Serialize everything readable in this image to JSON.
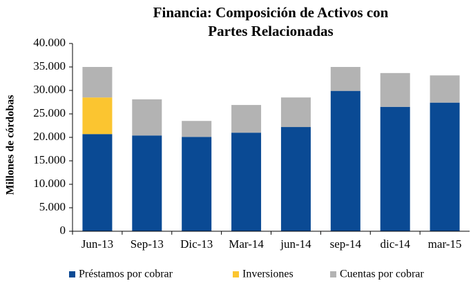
{
  "chart_data": {
    "type": "stacked_bar",
    "title": "Financia: Composición de Activos con Partes Relacionadas",
    "y_label": "Millones de córdobas",
    "categories": [
      "Jun-13",
      "Sep-13",
      "Dic-13",
      "Mar-14",
      "jun-14",
      "sep-14",
      "dic-14",
      "mar-15"
    ],
    "series": [
      {
        "name": "Préstamos por cobrar",
        "color": "#0a4a94",
        "values": [
          20700,
          20400,
          20100,
          21000,
          22200,
          29900,
          26500,
          27400
        ]
      },
      {
        "name": "Inversiones",
        "color": "#fbc530",
        "values": [
          7800,
          0,
          0,
          0,
          0,
          0,
          0,
          0
        ]
      },
      {
        "name": "Cuentas por cobrar",
        "color": "#b3b3b3",
        "values": [
          6500,
          7700,
          3400,
          5900,
          6300,
          5100,
          7200,
          5800
        ]
      }
    ],
    "ylim": [
      0,
      40000
    ],
    "yticks": [
      0,
      {
        "value": 5000,
        "label": "5.000"
      },
      {
        "value": 10000,
        "label": "10.000"
      },
      {
        "value": 15000,
        "label": "15.000"
      },
      {
        "value": 20000,
        "label": "20.000"
      },
      {
        "value": 25000,
        "label": "25.000"
      },
      {
        "value": 30000,
        "label": "30.000"
      },
      {
        "value": 35000,
        "label": "35.000"
      },
      {
        "value": 40000,
        "label": "40.000"
      }
    ],
    "legend": "bottom"
  }
}
